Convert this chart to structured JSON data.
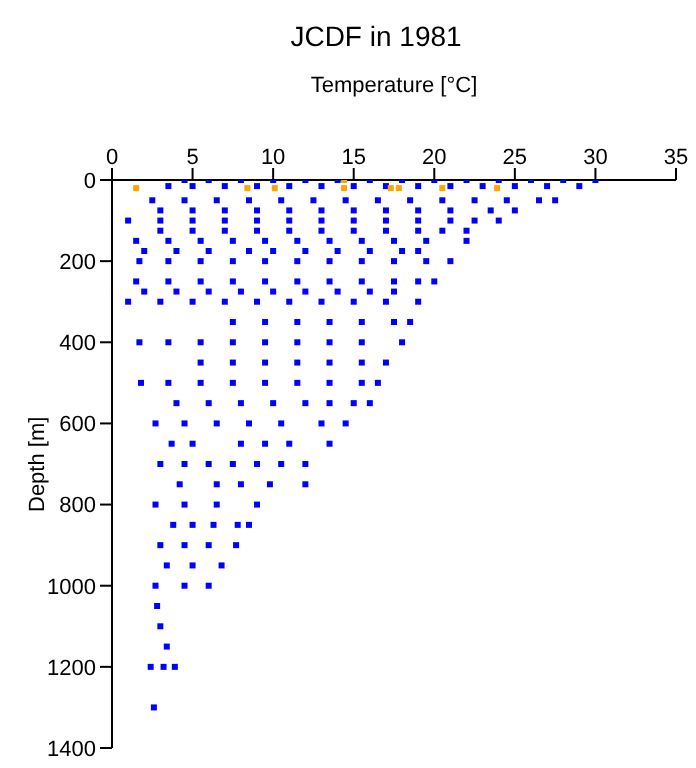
{
  "chart_data": {
    "type": "scatter",
    "title": "JCDF in 1981",
    "xlabel": "Temperature [°C]",
    "ylabel": "Depth [m]",
    "xlim": [
      0,
      35
    ],
    "xticks": [
      0,
      5,
      10,
      15,
      20,
      25,
      30,
      35
    ],
    "ylim": [
      1400,
      0
    ],
    "yticks": [
      0,
      200,
      400,
      600,
      800,
      1000,
      1200,
      1400
    ],
    "grid": false,
    "legend": false,
    "marker": "square",
    "series": [
      {
        "color": "#0000ff",
        "x": [
          4.5,
          6,
          8,
          10,
          12,
          14,
          16,
          18,
          20,
          22,
          24,
          26,
          28,
          30,
          3.5,
          5,
          7,
          9,
          11,
          13,
          15,
          17,
          19,
          21,
          23,
          25,
          27,
          29,
          2.5,
          4.5,
          6.5,
          8.5,
          10.5,
          12.5,
          14.5,
          16.5,
          18.5,
          20.5,
          22.5,
          24.5,
          26.5,
          27.5,
          3,
          5,
          7,
          9,
          11,
          13,
          15,
          17,
          19,
          21,
          23.5,
          25,
          1,
          3,
          5,
          7,
          9,
          11,
          13,
          15,
          17,
          19,
          21,
          22.5,
          24,
          3,
          5,
          7,
          9,
          11,
          13,
          15,
          17,
          19,
          20.5,
          22,
          1.5,
          3.5,
          5.5,
          7.5,
          9.5,
          11.5,
          13.5,
          15.5,
          17.5,
          19.5,
          22,
          2,
          4,
          6,
          8.5,
          10,
          12,
          14,
          16,
          18,
          19,
          1.7,
          3.5,
          5.5,
          7.5,
          9.5,
          11.5,
          13.5,
          15.5,
          17.5,
          19.5,
          21,
          1.5,
          3.5,
          5.5,
          7.5,
          9.5,
          11.5,
          13.5,
          15.5,
          17.5,
          19,
          20,
          2,
          4,
          6,
          8,
          10,
          12,
          14,
          16,
          17.5,
          1,
          3,
          5,
          7,
          9,
          11,
          13,
          15,
          17,
          19,
          7.5,
          9.5,
          11.5,
          13.5,
          15.5,
          17.5,
          18.5,
          1.7,
          3.5,
          5.5,
          7.5,
          9.5,
          11.5,
          13.5,
          15.5,
          18,
          5.5,
          7.5,
          9.5,
          11.5,
          13.5,
          15.5,
          17,
          1.8,
          3.5,
          5.5,
          7.5,
          9.5,
          11.5,
          13.5,
          15.5,
          16.5,
          4,
          6,
          8,
          10,
          12,
          13.5,
          15,
          16,
          2.7,
          4.5,
          6.5,
          8.5,
          10.5,
          13,
          14.5,
          3.7,
          5,
          8,
          9.5,
          11,
          13.5,
          3,
          4.5,
          6,
          7.5,
          9,
          10.5,
          12,
          4.2,
          6.5,
          8,
          9.8,
          12,
          2.7,
          4.5,
          6.5,
          9,
          3.8,
          5,
          6.3,
          7.8,
          8.5,
          3,
          4.5,
          6,
          7.7,
          3.4,
          5,
          6.8,
          2.7,
          4.5,
          6,
          2.8,
          3,
          3.4,
          2.4,
          3.2,
          3.9,
          2.6
        ],
        "values": [
          0,
          0,
          0,
          0,
          0,
          0,
          0,
          0,
          0,
          0,
          0,
          0,
          0,
          0,
          15,
          15,
          15,
          15,
          15,
          15,
          15,
          15,
          15,
          15,
          15,
          15,
          15,
          15,
          50,
          50,
          50,
          50,
          50,
          50,
          50,
          50,
          50,
          50,
          50,
          50,
          50,
          50,
          75,
          75,
          75,
          75,
          75,
          75,
          75,
          75,
          75,
          75,
          75,
          75,
          100,
          100,
          100,
          100,
          100,
          100,
          100,
          100,
          100,
          100,
          100,
          100,
          100,
          125,
          125,
          125,
          125,
          125,
          125,
          125,
          125,
          125,
          125,
          125,
          150,
          150,
          150,
          150,
          150,
          150,
          150,
          150,
          150,
          150,
          150,
          175,
          175,
          175,
          175,
          175,
          175,
          175,
          175,
          175,
          175,
          200,
          200,
          200,
          200,
          200,
          200,
          200,
          200,
          200,
          200,
          200,
          250,
          250,
          250,
          250,
          250,
          250,
          250,
          250,
          250,
          250,
          250,
          275,
          275,
          275,
          275,
          275,
          275,
          275,
          275,
          275,
          300,
          300,
          300,
          300,
          300,
          300,
          300,
          300,
          300,
          300,
          350,
          350,
          350,
          350,
          350,
          350,
          350,
          400,
          400,
          400,
          400,
          400,
          400,
          400,
          400,
          400,
          450,
          450,
          450,
          450,
          450,
          450,
          450,
          500,
          500,
          500,
          500,
          500,
          500,
          500,
          500,
          500,
          550,
          550,
          550,
          550,
          550,
          550,
          550,
          550,
          600,
          600,
          600,
          600,
          600,
          600,
          600,
          650,
          650,
          650,
          650,
          650,
          650,
          700,
          700,
          700,
          700,
          700,
          700,
          700,
          750,
          750,
          750,
          750,
          750,
          800,
          800,
          800,
          800,
          850,
          850,
          850,
          850,
          850,
          900,
          900,
          900,
          900,
          950,
          950,
          950,
          1000,
          1000,
          1000,
          1050,
          1100,
          1150,
          1200,
          1200,
          1200,
          1300
        ]
      },
      {
        "color": "#ffa500",
        "x": [
          1.5,
          8.4,
          10.1,
          14.4,
          14.4,
          17.3,
          17.8,
          20.5,
          23.9
        ],
        "values": [
          20,
          20,
          20,
          0,
          20,
          20,
          20,
          20,
          20
        ]
      }
    ]
  }
}
